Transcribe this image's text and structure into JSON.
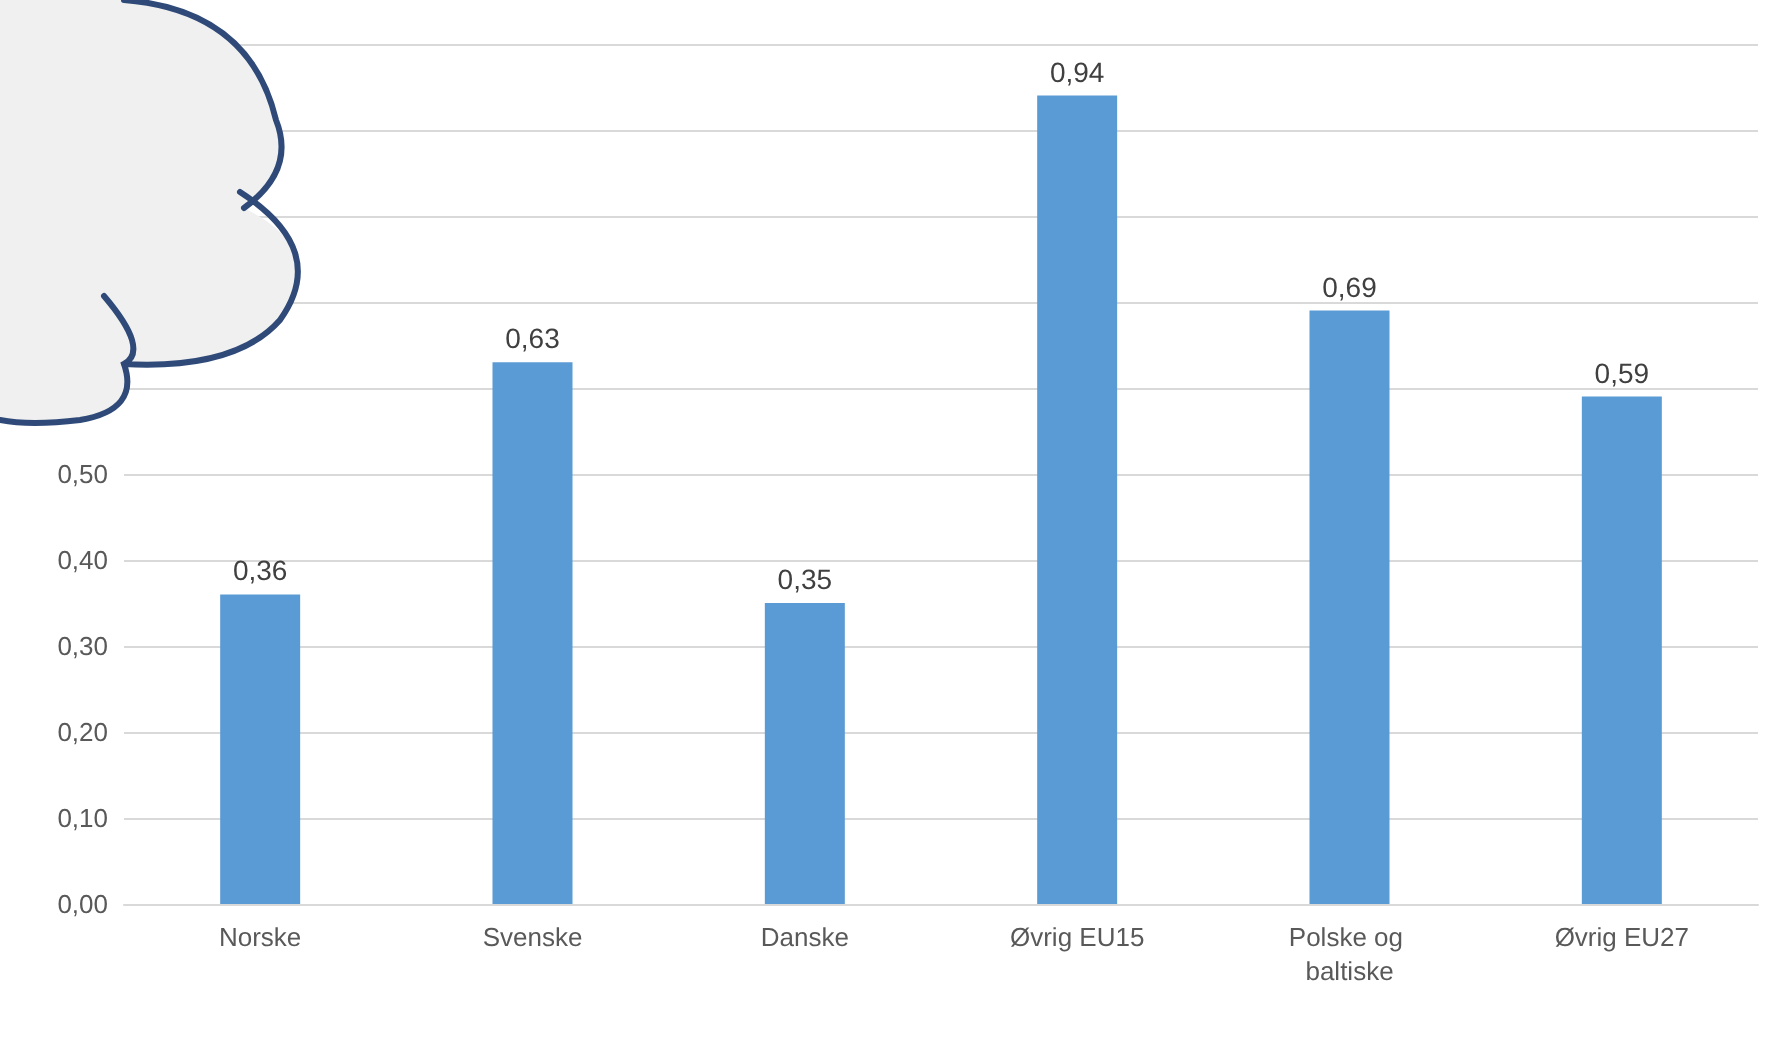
{
  "chart_data": {
    "type": "bar",
    "categories": [
      "Norske",
      "Svenske",
      "Danske",
      "Øvrig EU15",
      "Polske og baltiske",
      "Øvrig EU27"
    ],
    "values": [
      0.36,
      0.63,
      0.35,
      0.94,
      0.69,
      0.59
    ],
    "color": "#5b9bd5",
    "value_labels": [
      "0,36",
      "0,63",
      "0,35",
      "0,94",
      "0,69",
      "0,59"
    ],
    "grid": "y",
    "ylim": [
      0,
      1
    ],
    "yticks": [
      {
        "value": 0,
        "label": "0,00"
      },
      {
        "value": 0.1,
        "label": "0,10"
      },
      {
        "value": 0.2,
        "label": "0,20"
      },
      {
        "value": 0.3,
        "label": "0,30"
      },
      {
        "value": 0.4,
        "label": "0,40"
      },
      {
        "value": 0.5,
        "label": "0,50"
      },
      {
        "value": 0.6,
        "label": null
      },
      {
        "value": 0.7,
        "label": null
      },
      {
        "value": 0.8,
        "label": null
      },
      {
        "value": 0.9,
        "label": null
      },
      {
        "value": 1,
        "label": null
      }
    ]
  }
}
